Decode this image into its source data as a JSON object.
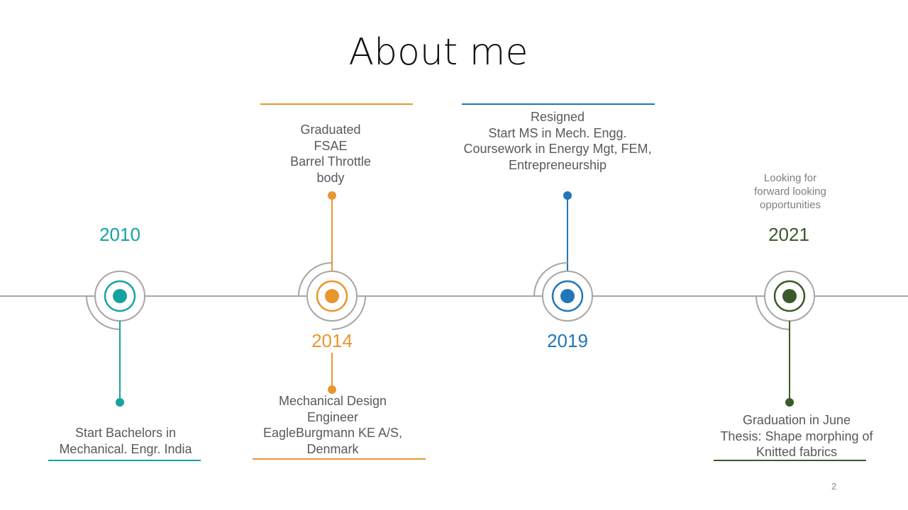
{
  "slide": {
    "title": "About me",
    "page_number": "2"
  },
  "milestones": [
    {
      "year": "2010",
      "color": "#17a2a2",
      "text": [
        "Start Bachelors in",
        "Mechanical. Engr. India"
      ]
    },
    {
      "year": "2014",
      "color": "#e8962e",
      "text_top": [
        "Graduated",
        "FSAE",
        "Barrel Throttle",
        "body"
      ],
      "text_bottom": [
        "Mechanical Design",
        "Engineer",
        "EagleBurgmann KE A/S,",
        "Denmark"
      ]
    },
    {
      "year": "2019",
      "color": "#2276b8",
      "text": [
        "Resigned",
        "Start MS in Mech. Engg.",
        "Coursework in Energy Mgt, FEM,",
        "Entrepreneurship"
      ]
    },
    {
      "year": "2021",
      "color": "#3b5a2a",
      "note": [
        "Looking for",
        "forward looking",
        "opportunities"
      ],
      "text": [
        "Graduation in June",
        "Thesis: Shape morphing of",
        "Knitted fabrics"
      ]
    }
  ]
}
